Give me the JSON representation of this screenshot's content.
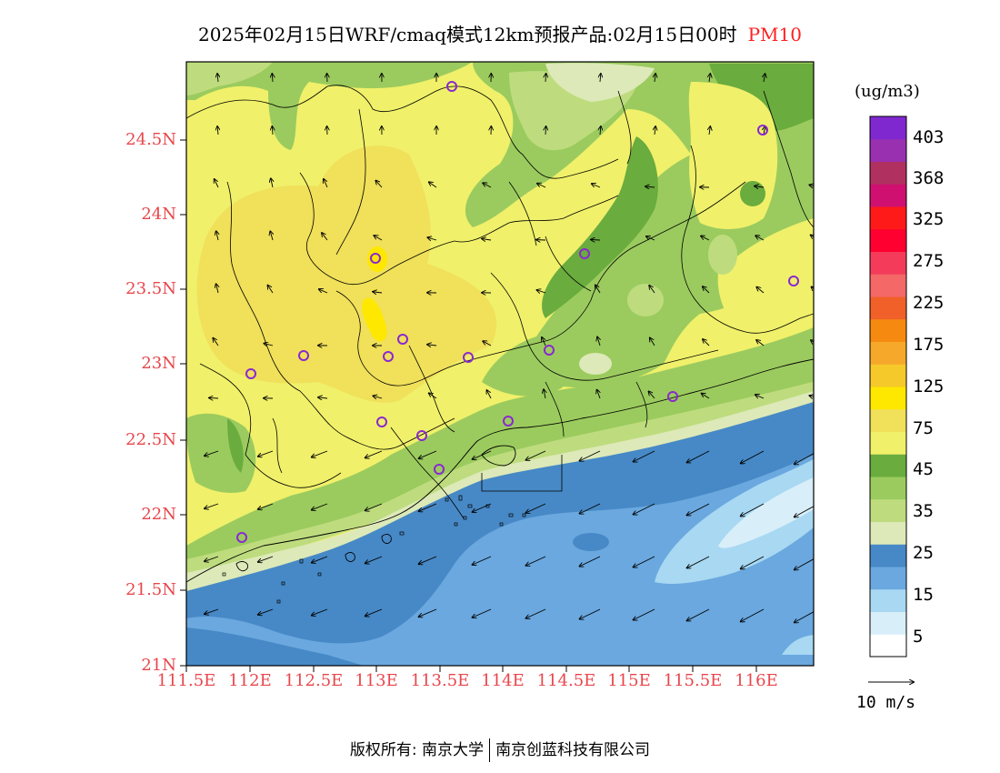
{
  "title": {
    "main": "2025年02月15日WRF/cmaq模式12km预报产品:02月15日00时",
    "variable": "PM10"
  },
  "map": {
    "lat_labels": [
      "24.5N",
      "24N",
      "23.5N",
      "23N",
      "22.5N",
      "22N",
      "21.5N",
      "21N"
    ],
    "lon_labels": [
      "111.5E",
      "112E",
      "112.5E",
      "113E",
      "113.5E",
      "114E",
      "114.5E",
      "115E",
      "115.5E",
      "116E"
    ],
    "lat_range": [
      21.0,
      25.05
    ],
    "lon_range": [
      111.5,
      116.7
    ],
    "stations_count_shown": 19,
    "colors": {
      "land_base": "#f0f06a",
      "high_land": "#f0e05a",
      "coast_band": "#dde9b8",
      "sea_dark": "#4789c6",
      "sea_mid": "#6aa8df",
      "sea_light": "#a8d8f2",
      "sea_lightest": "#d8eef9",
      "green_dark": "#6aac3e",
      "green_mid": "#9bcb5e",
      "green_light": "#bedc7e",
      "station": "#8a28d0"
    }
  },
  "colorbar": {
    "unit": "(ug/m3)",
    "colors": [
      "#ffffff",
      "#d8eef9",
      "#a8d8f2",
      "#6aa8df",
      "#4789c6",
      "#dde9b8",
      "#bedc7e",
      "#9bcb5e",
      "#6aac3e",
      "#f0f06a",
      "#f0e05a",
      "#ffe800",
      "#f6c92a",
      "#f6a82a",
      "#f68a10",
      "#f06028",
      "#f46868",
      "#f43c5a",
      "#ff0030",
      "#ff1a1a",
      "#d01070",
      "#b03060",
      "#9830b0",
      "#8028d0"
    ],
    "labels": [
      "5",
      "15",
      "25",
      "35",
      "45",
      "75",
      "125",
      "175",
      "225",
      "275",
      "325",
      "368",
      "403"
    ]
  },
  "wind_reference": {
    "label": "10 m/s"
  },
  "footer": {
    "left": "版权所有: 南京大学",
    "right": "南京创蓝科技有限公司"
  }
}
